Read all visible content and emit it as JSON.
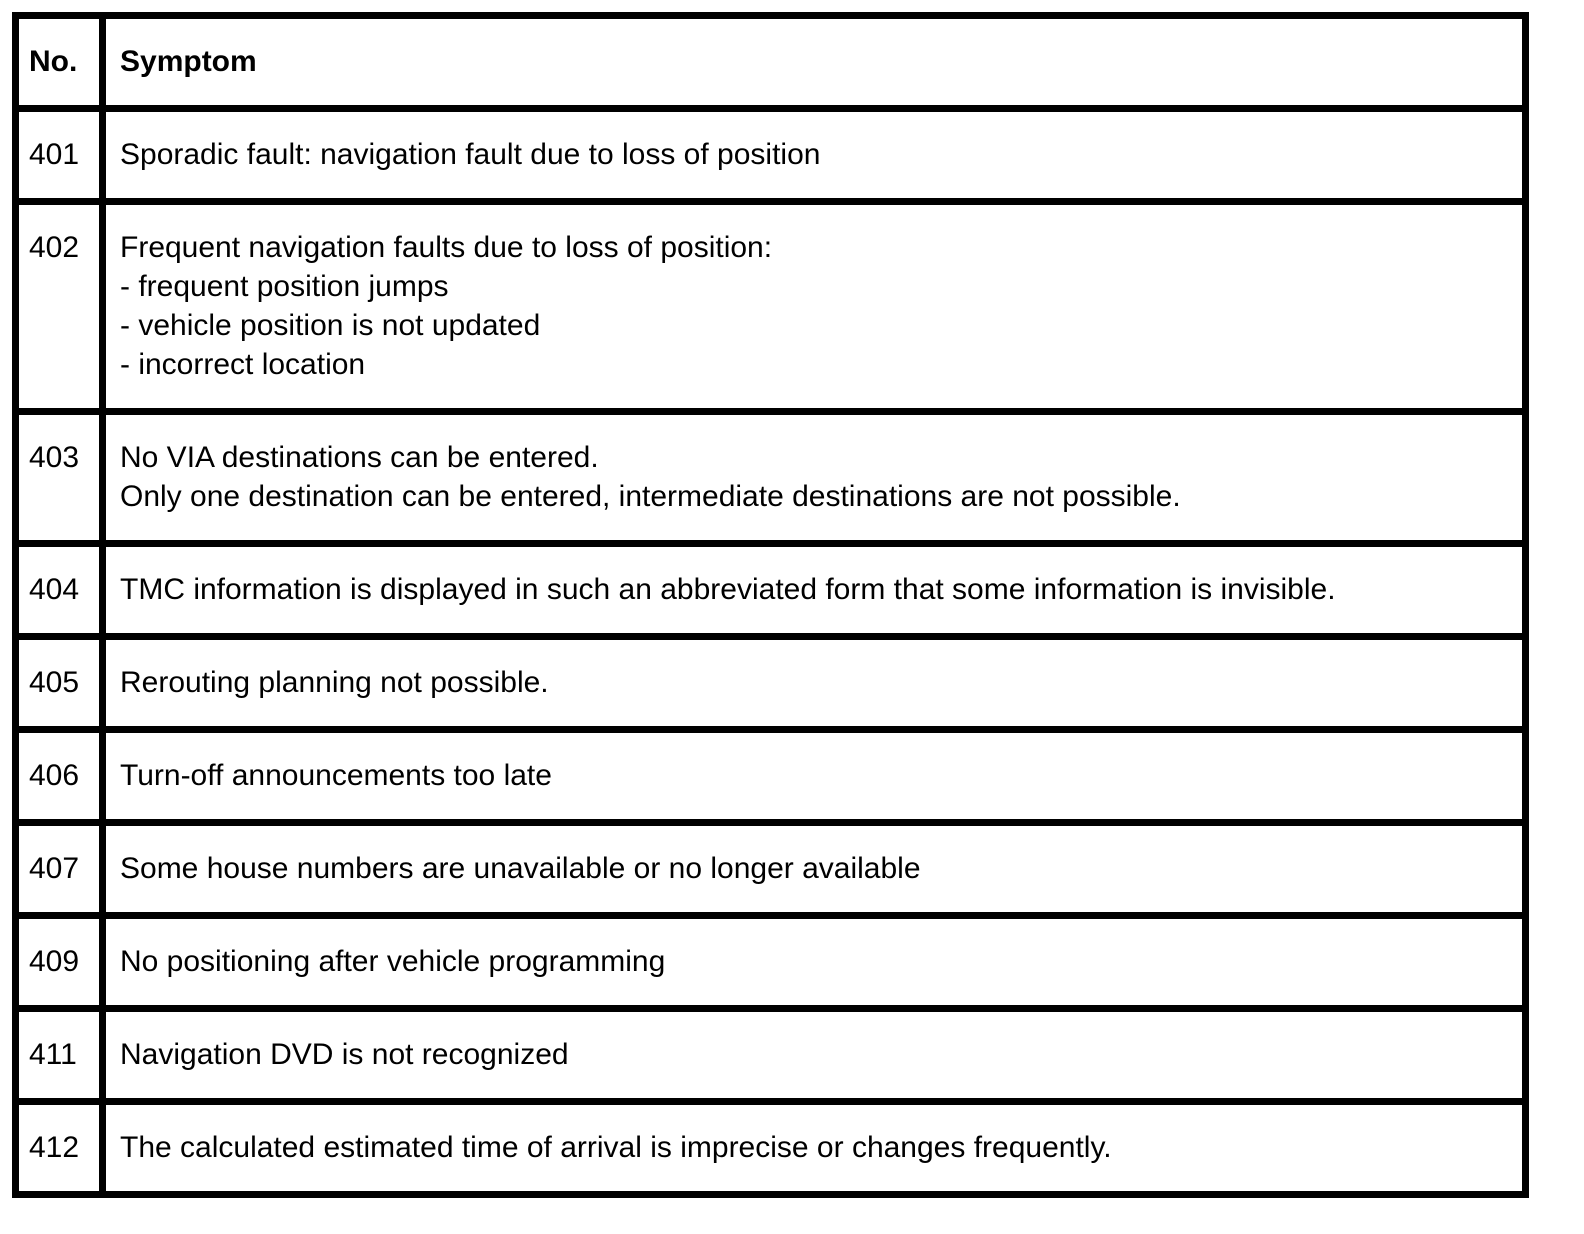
{
  "table": {
    "headers": {
      "no": "No.",
      "symptom": "Symptom"
    },
    "rows": [
      {
        "no": "401",
        "lines": [
          "Sporadic fault: navigation fault due to loss of position"
        ]
      },
      {
        "no": "402",
        "lines": [
          "Frequent navigation faults due to loss of position:",
          "- frequent position jumps",
          "- vehicle position is not updated",
          "- incorrect location"
        ]
      },
      {
        "no": "403",
        "lines": [
          "No VIA destinations can be entered.",
          "Only one destination can be entered, intermediate destinations are not possible."
        ]
      },
      {
        "no": "404",
        "lines": [
          "TMC information is displayed in such an abbreviated form that some information is invisible."
        ]
      },
      {
        "no": "405",
        "lines": [
          "Rerouting planning not possible."
        ]
      },
      {
        "no": "406",
        "lines": [
          "Turn-off announcements too late"
        ]
      },
      {
        "no": "407",
        "lines": [
          "Some house numbers are unavailable or no longer available"
        ]
      },
      {
        "no": "409",
        "lines": [
          "No positioning after vehicle programming"
        ]
      },
      {
        "no": "411",
        "lines": [
          "Navigation DVD is not recognized"
        ]
      },
      {
        "no": "412",
        "lines": [
          "The calculated estimated time of arrival is imprecise or changes frequently."
        ]
      }
    ]
  }
}
